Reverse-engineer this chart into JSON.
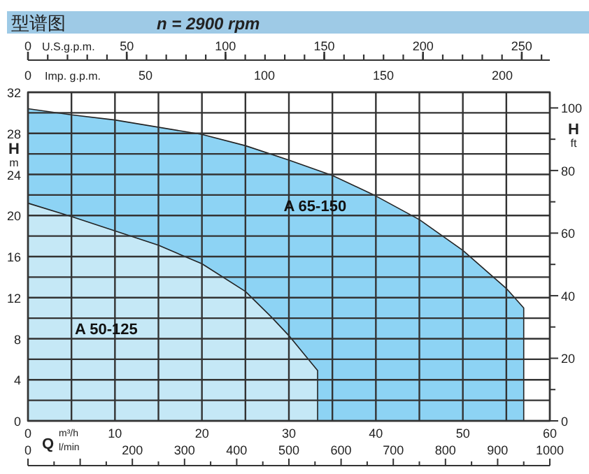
{
  "chart_data": {
    "type": "area",
    "title": "型谱图",
    "subtitle": "n = 2900 rpm",
    "xlabel": "m³/h",
    "ylabel": "H m",
    "y2label": "H ft",
    "x2label": "U.S.g.p.m.",
    "annotations": [
      "Q",
      "Imp. g.p.m.",
      "0",
      "50",
      "100",
      "150",
      "200",
      "l/min",
      "0",
      "200",
      "300",
      "400",
      "500",
      "600",
      "700",
      "800",
      "900",
      "1000"
    ],
    "xlim": [
      0,
      60
    ],
    "xticks": [
      0,
      {
        "value": 5,
        "label": null
      },
      10,
      {
        "value": 15,
        "label": null
      },
      20,
      {
        "value": 25,
        "label": null
      },
      30,
      {
        "value": 35,
        "label": null
      },
      40,
      {
        "value": 45,
        "label": null
      },
      50,
      {
        "value": 55,
        "label": null
      },
      60
    ],
    "ylim": [
      0,
      32
    ],
    "yticks": [
      0,
      {
        "value": 2,
        "label": null
      },
      4,
      {
        "value": 6,
        "label": null
      },
      8,
      {
        "value": 10,
        "label": null
      },
      12,
      {
        "value": 14,
        "label": null
      },
      16,
      {
        "value": 18,
        "label": null
      },
      20,
      {
        "value": 22,
        "label": null
      },
      24,
      {
        "value": 26,
        "label": null
      },
      28,
      {
        "value": 30,
        "label": null
      },
      32
    ],
    "y2lim": [
      0,
      105
    ],
    "y2ticks": [
      0,
      {
        "value": 10,
        "label": null
      },
      20,
      {
        "value": 30,
        "label": null
      },
      40,
      {
        "value": 50,
        "label": null
      },
      60,
      {
        "value": 70,
        "label": null
      },
      80,
      {
        "value": 90,
        "label": null
      },
      100
    ],
    "x2lim": [
      0,
      264.2
    ],
    "x2ticks": [
      0,
      50,
      100,
      150,
      200,
      250
    ],
    "grid": true,
    "series": [
      {
        "name": "A 65-150",
        "color": "#8dd3f4",
        "x": [
          0,
          5,
          10,
          20,
          25,
          30,
          35,
          40,
          45,
          50,
          55,
          57
        ],
        "values": [
          30.4,
          29.8,
          29.3,
          27.9,
          26.8,
          25.4,
          23.9,
          21.9,
          19.6,
          16.6,
          12.9,
          11.0
        ]
      },
      {
        "name": "A 50-125",
        "color": "#c5e8f6",
        "x": [
          0,
          5,
          10,
          15,
          20,
          25,
          28,
          30,
          33.3
        ],
        "values": [
          21.2,
          19.9,
          18.5,
          17.1,
          15.3,
          12.6,
          10.1,
          8.3,
          4.9
        ]
      }
    ]
  }
}
